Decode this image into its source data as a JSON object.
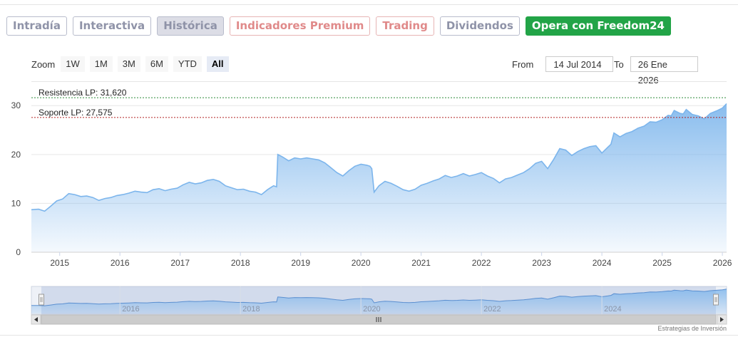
{
  "tabs": [
    {
      "label": "Intradía",
      "style": "gray"
    },
    {
      "label": "Interactiva",
      "style": "gray"
    },
    {
      "label": "Histórica",
      "style": "active"
    },
    {
      "label": "Indicadores Premium",
      "style": "pink"
    },
    {
      "label": "Trading",
      "style": "pink"
    },
    {
      "label": "Dividendos",
      "style": "gray"
    },
    {
      "label": "Opera con Freedom24",
      "style": "green"
    }
  ],
  "zoom": {
    "label": "Zoom",
    "buttons": [
      "1W",
      "1M",
      "3M",
      "6M",
      "YTD",
      "All"
    ],
    "selected": "All"
  },
  "range": {
    "from_label": "From",
    "from_value": "14 Jul 2014",
    "to_label": "To",
    "to_value": "26 Ene 2026"
  },
  "credit": "Estrategias de Inversión",
  "colors": {
    "line": "#7cb5ec",
    "resistance": "#2e8b3a",
    "support": "#b22222",
    "green_button": "#22a447"
  },
  "chart_data": {
    "type": "area",
    "xlabel": "",
    "ylabel": "",
    "xlim": [
      2014.53,
      2026.07
    ],
    "ylim": [
      0,
      31.2
    ],
    "y_ticks": [
      0,
      10,
      20,
      30
    ],
    "x_ticks": [
      "2015",
      "2016",
      "2017",
      "2018",
      "2019",
      "2020",
      "2021",
      "2022",
      "2023",
      "2024",
      "2025",
      "2026"
    ],
    "navigator_ticks": [
      "2016",
      "2018",
      "2020",
      "2022",
      "2024"
    ],
    "annotations": [
      {
        "label": "Resistencia LP: 31,620",
        "value": 31.62,
        "kind": "resistance"
      },
      {
        "label": "Soporte LP: 27,575",
        "value": 27.575,
        "kind": "support"
      }
    ],
    "grid": true,
    "series": [
      {
        "x": [
          2014.53,
          2014.65,
          2014.75,
          2014.85,
          2014.95,
          2015.05,
          2015.15,
          2015.25,
          2015.35,
          2015.45,
          2015.55,
          2015.65,
          2015.75,
          2015.85,
          2015.95,
          2016.05,
          2016.15,
          2016.25,
          2016.35,
          2016.45,
          2016.55,
          2016.65,
          2016.75,
          2016.85,
          2016.95,
          2017.05,
          2017.15,
          2017.25,
          2017.35,
          2017.45,
          2017.55,
          2017.65,
          2017.75,
          2017.85,
          2017.95,
          2018.05,
          2018.15,
          2018.25,
          2018.35,
          2018.45,
          2018.55,
          2018.6,
          2018.62,
          2018.7,
          2018.8,
          2018.9,
          2019.0,
          2019.1,
          2019.2,
          2019.3,
          2019.4,
          2019.5,
          2019.6,
          2019.7,
          2019.8,
          2019.9,
          2020.0,
          2020.1,
          2020.15,
          2020.18,
          2020.22,
          2020.3,
          2020.4,
          2020.5,
          2020.6,
          2020.7,
          2020.8,
          2020.9,
          2021.0,
          2021.1,
          2021.2,
          2021.3,
          2021.4,
          2021.5,
          2021.6,
          2021.7,
          2021.8,
          2021.9,
          2022.0,
          2022.1,
          2022.2,
          2022.3,
          2022.4,
          2022.5,
          2022.6,
          2022.7,
          2022.8,
          2022.9,
          2023.0,
          2023.1,
          2023.2,
          2023.3,
          2023.4,
          2023.5,
          2023.6,
          2023.7,
          2023.8,
          2023.9,
          2024.0,
          2024.1,
          2024.15,
          2024.2,
          2024.3,
          2024.4,
          2024.5,
          2024.6,
          2024.7,
          2024.8,
          2024.9,
          2025.0,
          2025.1,
          2025.15,
          2025.2,
          2025.3,
          2025.35,
          2025.4,
          2025.5,
          2025.6,
          2025.7,
          2025.8,
          2025.9,
          2026.0,
          2026.07
        ],
        "values": [
          8.7,
          8.8,
          8.4,
          9.4,
          10.5,
          10.9,
          12.0,
          11.8,
          11.4,
          11.5,
          11.2,
          10.6,
          11.0,
          11.2,
          11.6,
          11.8,
          12.1,
          12.5,
          12.3,
          12.2,
          12.8,
          13.0,
          12.6,
          12.9,
          13.1,
          13.8,
          14.3,
          14.0,
          14.2,
          14.7,
          14.9,
          14.5,
          13.6,
          13.2,
          12.8,
          12.9,
          12.5,
          12.3,
          11.8,
          12.8,
          13.6,
          13.4,
          20.0,
          19.5,
          18.7,
          19.3,
          19.1,
          19.3,
          19.1,
          18.9,
          18.3,
          17.3,
          16.3,
          15.6,
          16.7,
          17.6,
          18.0,
          17.8,
          17.6,
          17.1,
          12.3,
          13.6,
          14.5,
          14.1,
          13.5,
          12.8,
          12.5,
          12.9,
          13.7,
          14.1,
          14.6,
          15.0,
          15.7,
          15.3,
          15.6,
          16.1,
          15.6,
          15.9,
          16.3,
          15.6,
          15.1,
          14.2,
          15.0,
          15.3,
          15.8,
          16.3,
          17.1,
          18.2,
          18.6,
          17.1,
          19.0,
          21.2,
          20.9,
          19.8,
          20.6,
          21.2,
          21.6,
          21.8,
          20.3,
          21.5,
          22.1,
          24.4,
          23.6,
          24.3,
          24.7,
          25.4,
          25.8,
          26.7,
          26.6,
          27.1,
          28.0,
          27.9,
          29.0,
          28.4,
          28.3,
          29.2,
          28.2,
          27.9,
          27.3,
          28.4,
          28.9,
          29.5,
          30.4
        ]
      }
    ]
  }
}
